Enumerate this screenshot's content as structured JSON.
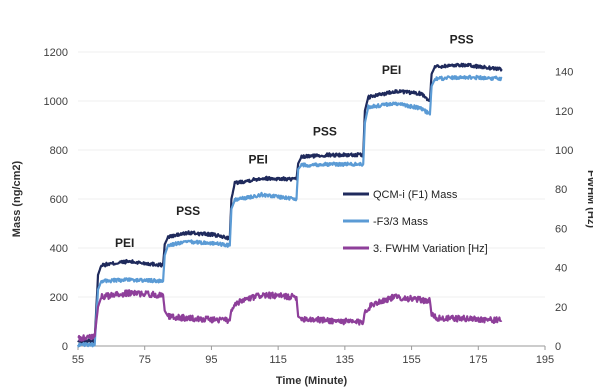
{
  "chart_data": {
    "type": "line",
    "title": "",
    "xlabel": "Time (Minute)",
    "ylabel": "Mass (ng/cm2)",
    "y2label": "FWHM (Hz)",
    "xlim": [
      55,
      195
    ],
    "ylim": [
      0,
      1200
    ],
    "y2lim": [
      0,
      150
    ],
    "x_ticks": [
      55,
      75,
      95,
      115,
      135,
      155,
      175,
      195
    ],
    "y_ticks": [
      0,
      200,
      400,
      600,
      800,
      1000,
      1200
    ],
    "y2_ticks": [
      0,
      20,
      40,
      60,
      80,
      100,
      120,
      140
    ],
    "grid": false,
    "legend_position": "right",
    "annotations": [
      {
        "text": "PEI",
        "x": 69,
        "y": 405
      },
      {
        "text": "PSS",
        "x": 88,
        "y": 535
      },
      {
        "text": "PEI",
        "x": 109,
        "y": 745
      },
      {
        "text": "PSS",
        "x": 129,
        "y": 860
      },
      {
        "text": "PEI",
        "x": 149,
        "y": 1110
      },
      {
        "text": "PSS",
        "x": 170,
        "y": 1235
      }
    ],
    "series": [
      {
        "name": "QCM-i (F1) Mass",
        "axis": "left",
        "color": "#1f2a5c",
        "x": [
          55,
          60,
          61,
          62,
          70,
          80.5,
          81,
          82,
          88,
          95,
          100.5,
          101,
          102,
          110,
          120.5,
          121,
          122,
          130,
          140.5,
          141,
          142,
          150,
          158,
          160.5,
          161,
          162,
          170,
          182
        ],
        "y": [
          20,
          20,
          290,
          330,
          345,
          330,
          415,
          445,
          462,
          455,
          440,
          600,
          665,
          685,
          680,
          745,
          772,
          780,
          780,
          960,
          1015,
          1040,
          1030,
          1000,
          1110,
          1140,
          1148,
          1130
        ]
      },
      {
        "name": "-F3/3 Mass",
        "axis": "left",
        "color": "#5b9bd5",
        "x": [
          55,
          60,
          61,
          62,
          70,
          80.5,
          81,
          82,
          88,
          95,
          100.5,
          101,
          102,
          110,
          120.5,
          121,
          122,
          130,
          140.5,
          141,
          142,
          150,
          158,
          160.5,
          161,
          162,
          170,
          182
        ],
        "y": [
          5,
          5,
          230,
          265,
          270,
          265,
          370,
          412,
          425,
          420,
          410,
          560,
          595,
          618,
          600,
          722,
          738,
          742,
          742,
          910,
          975,
          990,
          970,
          945,
          1060,
          1090,
          1098,
          1092
        ]
      },
      {
        "name": "3. FWHM Variation [Hz]",
        "axis": "right",
        "color": "#8e3f9a",
        "x": [
          55,
          60,
          61,
          62,
          70,
          80.5,
          81,
          82,
          90,
          100.5,
          101,
          104,
          110,
          120.5,
          121,
          122,
          130,
          140.5,
          141,
          144,
          150,
          160.5,
          161,
          163,
          172,
          182
        ],
        "y": [
          4,
          5,
          20,
          25,
          27,
          26,
          18,
          15,
          14,
          13,
          19,
          23,
          26,
          25,
          15,
          14,
          13,
          12,
          18,
          22,
          25,
          23,
          16,
          14,
          14,
          13
        ]
      }
    ]
  }
}
